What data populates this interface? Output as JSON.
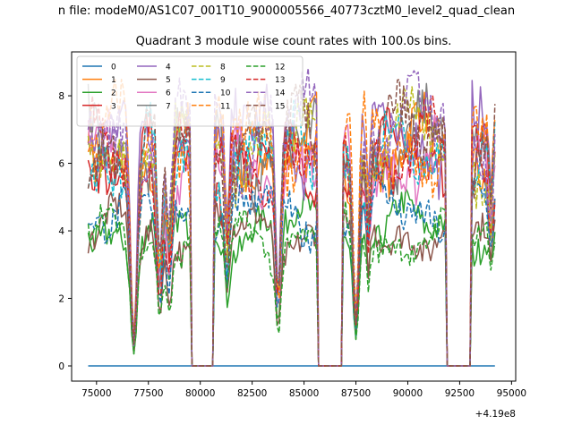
{
  "chart_data": {
    "type": "line",
    "suptitle": "n file: modeM0/AS1C07_001T10_9000005566_40773cztM0_level2_quad_clean",
    "title": "Quadrant 3 module wise count rates with 100.0s bins.",
    "xlabel": "",
    "ylabel": "",
    "x_offset_label": "+4.19e8",
    "xlim": [
      73800,
      95200
    ],
    "ylim": [
      -0.45,
      9.3
    ],
    "x_ticks": [
      75000,
      77500,
      80000,
      82500,
      85000,
      87500,
      90000,
      92500,
      95000
    ],
    "x_tick_labels": [
      "75000",
      "77500",
      "80000",
      "82500",
      "85000",
      "87500",
      "90000",
      "92500",
      "95000"
    ],
    "y_ticks": [
      0,
      2,
      4,
      6,
      8
    ],
    "y_tick_labels": [
      "0",
      "2",
      "4",
      "6",
      "8"
    ],
    "legend_position": "upper-left",
    "legend_columns": 4,
    "segments": [
      {
        "x_start": 74600,
        "x_end": 79500,
        "points": 50
      },
      {
        "x_start": 80700,
        "x_end": 85600,
        "points": 50
      },
      {
        "x_start": 86900,
        "x_end": 91800,
        "points": 50
      },
      {
        "x_start": 93100,
        "x_end": 94200,
        "points": 12
      }
    ],
    "gaps": [
      {
        "x_start": 79500,
        "x_end": 80700
      },
      {
        "x_start": 85600,
        "x_end": 86900
      },
      {
        "x_start": 91800,
        "x_end": 93100
      }
    ],
    "dips": [
      {
        "x": 76800,
        "depth": 0.9,
        "width": 220
      },
      {
        "x": 78050,
        "depth": 0.6,
        "width": 180
      },
      {
        "x": 78500,
        "depth": 0.5,
        "width": 200
      },
      {
        "x": 81300,
        "depth": 0.45,
        "width": 150
      },
      {
        "x": 83750,
        "depth": 0.7,
        "width": 180
      },
      {
        "x": 87500,
        "depth": 0.8,
        "width": 200
      },
      {
        "x": 88100,
        "depth": 0.35,
        "width": 120
      },
      {
        "x": 94000,
        "depth": 0.3,
        "width": 120
      }
    ],
    "series": [
      {
        "name": "0",
        "color": "#1f77b4",
        "dash": "solid",
        "level": 0.0
      },
      {
        "name": "1",
        "color": "#ff7f0e",
        "dash": "solid",
        "level": 6.4
      },
      {
        "name": "2",
        "color": "#2ca02c",
        "dash": "solid",
        "level": 4.1
      },
      {
        "name": "3",
        "color": "#d62728",
        "dash": "solid",
        "level": 6.0
      },
      {
        "name": "4",
        "color": "#9467bd",
        "dash": "solid",
        "level": 6.8
      },
      {
        "name": "5",
        "color": "#8c564b",
        "dash": "solid",
        "level": 4.0
      },
      {
        "name": "6",
        "color": "#e377c2",
        "dash": "solid",
        "level": 6.1
      },
      {
        "name": "7",
        "color": "#7f7f7f",
        "dash": "solid",
        "level": 6.5
      },
      {
        "name": "8",
        "color": "#bcbd22",
        "dash": "dashed",
        "level": 6.6
      },
      {
        "name": "9",
        "color": "#17becf",
        "dash": "dashed",
        "level": 6.2
      },
      {
        "name": "10",
        "color": "#1f77b4",
        "dash": "dashed",
        "level": 4.6
      },
      {
        "name": "11",
        "color": "#ff7f0e",
        "dash": "dashed",
        "level": 6.7
      },
      {
        "name": "12",
        "color": "#2ca02c",
        "dash": "dashed",
        "level": 3.8
      },
      {
        "name": "13",
        "color": "#d62728",
        "dash": "dashed",
        "level": 6.3
      },
      {
        "name": "14",
        "color": "#9467bd",
        "dash": "dashed",
        "level": 7.2
      },
      {
        "name": "15",
        "color": "#8c564b",
        "dash": "dashed",
        "level": 6.6
      }
    ]
  }
}
